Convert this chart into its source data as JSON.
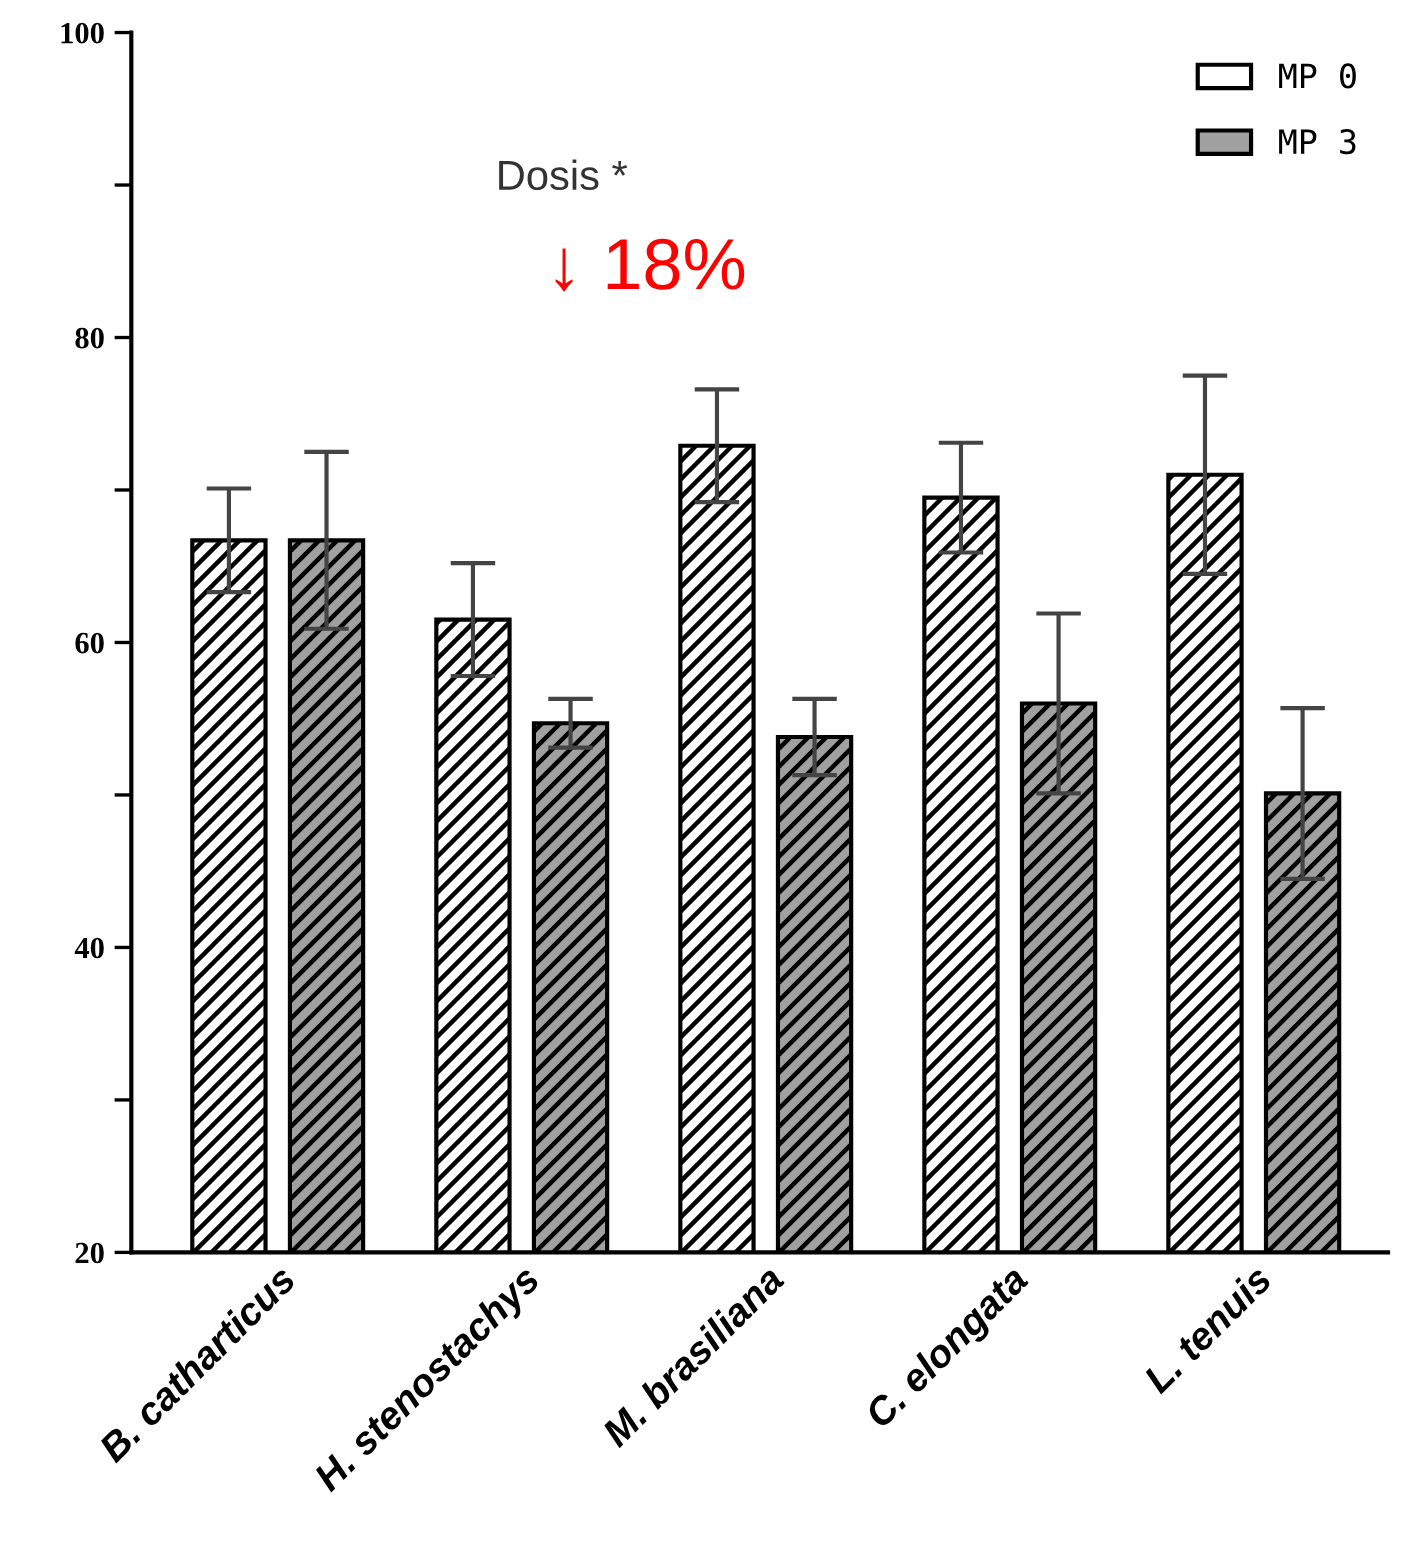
{
  "chart_data": {
    "type": "bar",
    "categories": [
      "B. catharticus",
      "H. stenostachys",
      "M. brasiliana",
      "C. elongata",
      "L. tenuis"
    ],
    "series": [
      {
        "name": "MP 0",
        "color": "#ffffff",
        "values": [
          66.7,
          61.5,
          72.9,
          69.5,
          71.0
        ],
        "errors": [
          3.4,
          3.7,
          3.7,
          3.6,
          6.5
        ]
      },
      {
        "name": "MP 3",
        "color": "#a0a0a0",
        "values": [
          66.7,
          54.7,
          53.8,
          56.0,
          50.1
        ],
        "errors": [
          5.8,
          1.6,
          2.5,
          5.9,
          5.6
        ]
      }
    ],
    "ylim": [
      20,
      100
    ],
    "yticks": [
      20,
      {
        "value": 30,
        "label": null
      },
      40,
      {
        "value": 50,
        "label": null
      },
      60,
      {
        "value": 70,
        "label": null
      },
      80,
      {
        "value": 90,
        "label": null
      },
      100
    ],
    "annotations": [
      "Dosis *",
      "↓ 18%"
    ],
    "legend": "top right",
    "grid": false
  }
}
